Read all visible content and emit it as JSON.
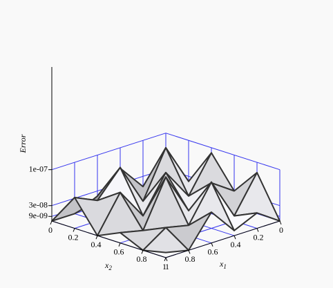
{
  "chart_data": {
    "type": "surface",
    "zlabel": "Error",
    "x1_label": {
      "base": "x",
      "sub": "1"
    },
    "x2_label": {
      "base": "x",
      "sub": "2"
    },
    "x1": [
      0,
      0.2,
      0.4,
      0.6,
      0.8,
      1
    ],
    "x2": [
      0,
      0.2,
      0.4,
      0.6,
      0.8,
      1
    ],
    "z": [
      [
        0,
        2e-08,
        9e-08,
        3e-08,
        8e-08,
        0
      ],
      [
        1e-08,
        1e-07,
        2e-08,
        6e-08,
        1e-08,
        3e-08
      ],
      [
        6e-08,
        1e-08,
        8e-08,
        2e-08,
        9e-08,
        1e-08
      ],
      [
        2e-08,
        9e-08,
        1e-08,
        1e-07,
        2e-08,
        6e-08
      ],
      [
        0,
        4e-08,
        7e-08,
        1e-08,
        3e-08,
        0
      ],
      [
        0,
        6e-08,
        0,
        2e-08,
        0,
        1e-08
      ]
    ],
    "xlim": [
      0,
      1
    ],
    "x1ticks": [
      0,
      0.2,
      0.4,
      0.6,
      0.8,
      1
    ],
    "x2ticks": [
      0,
      0.2,
      0.4,
      0.6,
      0.8,
      1
    ],
    "zlim": [
      0,
      3e-07
    ],
    "zticks": [
      {
        "value": 9e-09,
        "label": "9e-09"
      },
      {
        "value": 3e-08,
        "label": "3e-08"
      },
      {
        "value": 1e-07,
        "label": "1e-07"
      }
    ],
    "grid": true,
    "grid_color": "#3333ee",
    "edge_color": "#333333"
  }
}
